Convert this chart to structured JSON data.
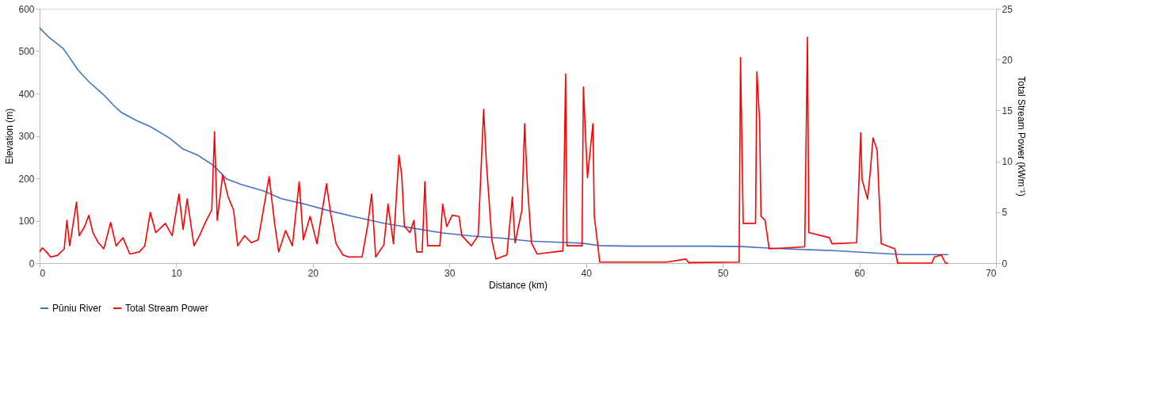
{
  "chart_data": {
    "type": "line",
    "xlabel": "Distance (km)",
    "ylabel": "Elevation (m)",
    "y2label": "Total Stream Power (kWm⁻¹)",
    "xlim": [
      0,
      70
    ],
    "xticks": [
      0,
      10,
      20,
      30,
      40,
      50,
      60,
      70
    ],
    "ylim": [
      0,
      600
    ],
    "yticks": [
      0,
      100,
      200,
      300,
      400,
      500,
      600
    ],
    "y2lim": [
      0,
      25
    ],
    "y2ticks": [
      0,
      5,
      10,
      15,
      20,
      25
    ],
    "grid": false,
    "legend": "bottom",
    "marker": "none",
    "line_style": "solid",
    "series": [
      {
        "name": "Pūniu River",
        "color": "#4472c4",
        "x": [
          0,
          0.6,
          1.7,
          2.1,
          2.8,
          3.6,
          4.65,
          5.45,
          6,
          7.05,
          8.1,
          9.5,
          10.5,
          11.6,
          12.7,
          13.7,
          14.8,
          16.4,
          17.7,
          19.3,
          21,
          23.1,
          25.2,
          27.4,
          29.5,
          31.6,
          33.8,
          35.9,
          38.1,
          39.7,
          41,
          43.4,
          48.8,
          51.4,
          53,
          55.2,
          58.4,
          61.6,
          63.2,
          66.5
        ],
        "values": [
          555,
          535,
          507,
          489,
          456,
          428,
          398,
          371,
          355,
          337,
          322,
          295,
          269,
          254,
          231,
          198,
          185,
          170,
          152,
          140,
          125,
          109,
          94,
          82,
          71,
          64,
          59,
          52,
          49,
          47,
          41,
          40,
          40,
          39,
          36,
          33,
          29,
          23,
          20,
          20
        ]
      },
      {
        "name": "Total Stream Power",
        "color": "#ff0000",
        "axis": "y2",
        "x": [
          0,
          0.2,
          0.5,
          0.8,
          1.3,
          1.8,
          2.0,
          2.2,
          2.7,
          2.9,
          3.3,
          3.6,
          3.9,
          4.3,
          4.7,
          5.2,
          5.6,
          6.1,
          6.6,
          7.3,
          7.7,
          8.1,
          8.5,
          9.2,
          9.7,
          10.2,
          10.5,
          10.8,
          11.3,
          11.7,
          12.2,
          12.6,
          12.8,
          13.0,
          13.4,
          13.8,
          14.2,
          14.5,
          15.0,
          15.5,
          16.0,
          16.8,
          17.2,
          17.5,
          18.0,
          18.5,
          19.0,
          19.3,
          19.8,
          20.3,
          21.0,
          21.3,
          21.7,
          22.2,
          22.6,
          23.6,
          24.0,
          24.3,
          24.6,
          25.2,
          25.5,
          25.9,
          26.3,
          26.5,
          26.7,
          27.1,
          27.4,
          27.6,
          28.0,
          28.2,
          28.4,
          29.3,
          29.5,
          29.8,
          30.2,
          30.7,
          30.9,
          31.6,
          32.1,
          32.5,
          32.7,
          33.1,
          33.4,
          34.2,
          34.6,
          34.8,
          35.3,
          35.5,
          35.7,
          36.0,
          36.4,
          38.3,
          38.5,
          38.6,
          39.7,
          39.8,
          40.1,
          40.5,
          40.6,
          41.0,
          45.9,
          47.3,
          47.5,
          51.2,
          51.3,
          51.5,
          52.4,
          52.5,
          52.7,
          52.8,
          53.1,
          53.4,
          56.0,
          56.2,
          56.3,
          57.8,
          58.0,
          59.8,
          60.1,
          60.2,
          60.6,
          60.8,
          61.0,
          61.3,
          61.6,
          62.6,
          62.8,
          65.3,
          65.5,
          66.0,
          66.3,
          66.5
        ],
        "values": [
          1.1,
          1.5,
          1.1,
          0.6,
          0.75,
          1.4,
          4.2,
          1.7,
          6,
          2.7,
          3.6,
          4.7,
          3,
          2,
          1.4,
          4,
          1.7,
          2.5,
          0.9,
          1.1,
          1.7,
          5,
          3,
          3.9,
          2.7,
          6.8,
          3.3,
          6.3,
          1.7,
          2.7,
          4.2,
          5.2,
          12.9,
          4.2,
          8.7,
          6.5,
          5.2,
          1.7,
          2.7,
          2,
          2.3,
          8.5,
          3.9,
          1.1,
          3.2,
          1.7,
          8,
          2.3,
          4.6,
          1.9,
          7.8,
          4.9,
          1.9,
          0.8,
          0.6,
          0.6,
          3.6,
          6.8,
          0.6,
          1.8,
          5.8,
          1.9,
          10.6,
          8.7,
          3.6,
          3,
          4.2,
          1.1,
          1.1,
          8,
          1.7,
          1.7,
          5.8,
          3.6,
          4.7,
          4.6,
          2.7,
          1.7,
          2.7,
          15.1,
          9.9,
          2.3,
          0.4,
          0.8,
          6.5,
          2,
          5.2,
          13.7,
          7.7,
          2,
          0.9,
          1.2,
          18.6,
          1.7,
          1.7,
          17.3,
          8.4,
          13.7,
          4.6,
          0.1,
          0.1,
          0.4,
          0.05,
          0.1,
          20.2,
          3.9,
          3.9,
          18.8,
          13.9,
          4.6,
          4.2,
          1.4,
          1.6,
          22.2,
          3,
          2.5,
          1.9,
          2,
          12.8,
          8.2,
          6.3,
          9,
          12.3,
          11.1,
          1.9,
          1.4,
          0,
          0,
          0.6,
          0.8,
          0,
          0
        ]
      }
    ]
  }
}
